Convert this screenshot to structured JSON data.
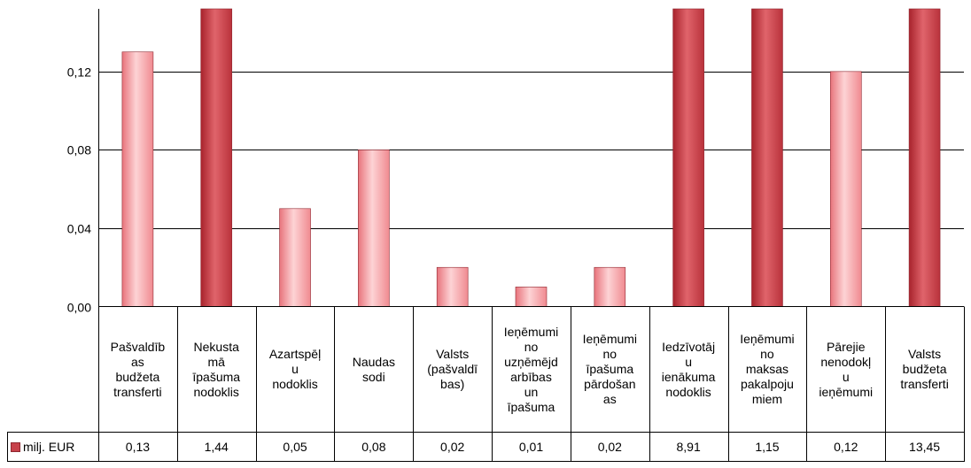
{
  "chart_data": {
    "type": "bar",
    "categories": [
      "Pašvaldības budžeta transferti",
      "Nekustamā īpašuma nodoklis",
      "Azartspēļu nodoklis",
      "Naudas sodi",
      "Valsts (pašvaldības)",
      "Ieņēmumi no uzņēmējdarbības un īpašuma",
      "Ieņēmumi no īpašuma pārdošanas",
      "Iedzīvotāju ienākuma nodoklis",
      "Ieņēmumi no maksas pakalpojumiem",
      "Pārējie nenodokļu ieņēmumi",
      "Valsts budžeta transferti"
    ],
    "category_lines": [
      [
        "Pašvaldīb",
        "as",
        "budžeta",
        "transferti"
      ],
      [
        "Nekusta",
        "mā",
        "īpašuma",
        "nodoklis"
      ],
      [
        "Azartspēļ",
        "u",
        "nodoklis"
      ],
      [
        "Naudas",
        "sodi"
      ],
      [
        "Valsts",
        "(pašvaldī",
        "bas)"
      ],
      [
        "Ieņēmumi",
        "no",
        "uzņēmējd",
        "arbības",
        "un",
        "īpašuma"
      ],
      [
        "Ieņēmumi",
        "no",
        "īpašuma",
        "pārdošan",
        "as"
      ],
      [
        "Iedzīvotāj",
        "u",
        "ienākuma",
        "nodoklis"
      ],
      [
        "Ieņēmumi",
        "no",
        "maksas",
        "pakalpoju",
        "miem"
      ],
      [
        "Pārejie",
        "nenodokļ",
        "u",
        "ieņēmumi"
      ],
      [
        "Valsts",
        "budžeta",
        "transferti"
      ]
    ],
    "series": [
      {
        "name": "milj. EUR",
        "values": [
          0.13,
          1.44,
          0.05,
          0.08,
          0.02,
          0.01,
          0.02,
          8.91,
          1.15,
          0.12,
          13.45
        ],
        "value_labels": [
          "0,13",
          "1,44",
          "0,05",
          "0,08",
          "0,02",
          "0,01",
          "0,02",
          "8,91",
          "1,15",
          "0,12",
          "13,45"
        ]
      }
    ],
    "yticks": [
      0,
      0.04,
      0.08,
      0.12
    ],
    "ytick_labels": [
      "0,00",
      "0,04",
      "0,08",
      "0,12"
    ],
    "ylim": [
      0,
      0.152
    ],
    "grid": true,
    "legend": "data-table",
    "colors": {
      "light_bar": "#f59a9f",
      "dark_bar": "#c7414a",
      "bar_edge": "#8f2730",
      "grid": "#000000"
    }
  }
}
